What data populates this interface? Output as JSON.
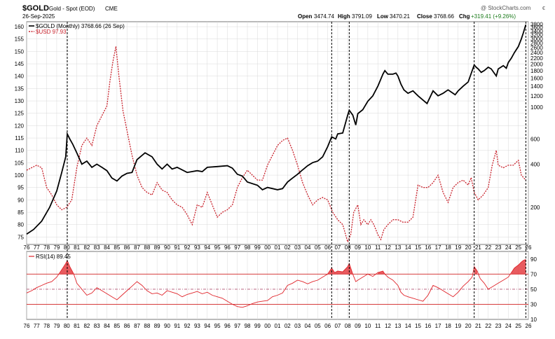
{
  "header": {
    "symbol": "$GOLD",
    "name": "Gold - Spot (EOD)",
    "exchange": "CME",
    "date": "26-Sep-2025",
    "watermark": "@ StockCharts.com",
    "ohlc": {
      "open_label": "Open",
      "open": "3474.74",
      "high_label": "High",
      "high": "3791.09",
      "low_label": "Low",
      "low": "3470.21",
      "close_label": "Close",
      "close": "3768.66",
      "chg_label": "Chg",
      "chg": "+319.41 (+9.26%)"
    },
    "corner_mark": "ϵ"
  },
  "legend": {
    "gold": "$GOLD (Monthly) 3768.66 (26 Sep)",
    "usd": "$USD 97.93",
    "rsi": "RSI(14) 89.45"
  },
  "colors": {
    "gold_line": "#000000",
    "usd_line": "#c8202a",
    "rsi_line": "#e0242a",
    "rsi_fill": "#e0242a",
    "grid": "#d9d9d9",
    "event_line": "#000000",
    "ref_line": "#d02020"
  },
  "chart_data": [
    {
      "type": "line",
      "panel": "price",
      "left_axis_ticks": [
        75,
        80,
        85,
        90,
        95,
        100,
        105,
        110,
        115,
        120,
        125,
        130,
        135,
        140,
        145,
        150,
        155,
        160
      ],
      "right_axis_ticks": [
        200,
        400,
        600,
        800,
        1000,
        1200,
        1400,
        1600,
        1800,
        2000,
        2200,
        2400,
        2600,
        2800,
        3000,
        3200,
        3400,
        3600,
        3800
      ],
      "right_axis_tick_labels": [
        "200",
        "400",
        "600",
        "",
        "1000",
        "1200",
        "1400",
        "1600",
        "1800",
        "2000",
        "2200",
        "2400",
        "2600",
        "2800",
        "3000",
        "3200",
        "3400",
        "3600",
        "3800"
      ],
      "x_tick_labels": [
        "76",
        "77",
        "78",
        "79",
        "80",
        "81",
        "82",
        "83",
        "84",
        "85",
        "86",
        "87",
        "88",
        "89",
        "90",
        "91",
        "92",
        "93",
        "94",
        "95",
        "96",
        "97",
        "98",
        "99",
        "00",
        "01",
        "02",
        "03",
        "04",
        "05",
        "06",
        "07",
        "08",
        "09",
        "10",
        "11",
        "12",
        "13",
        "14",
        "15",
        "16",
        "17",
        "18",
        "19",
        "20",
        "21",
        "22",
        "23",
        "24",
        "25",
        "26"
      ],
      "x_range": [
        1976,
        2026
      ],
      "right_scale": "log",
      "event_lines": [
        1980.05,
        2006.4,
        2008.15,
        2020.6,
        2025.75
      ],
      "series": [
        {
          "axis": "right",
          "x": [
            1976.0,
            1976.7,
            1977.5,
            1978.3,
            1979.0,
            1979.5,
            1979.9,
            1980.05,
            1980.3,
            1980.6,
            1981.0,
            1981.5,
            1982.0,
            1982.5,
            1983.0,
            1983.5,
            1984.0,
            1984.5,
            1985.0,
            1985.5,
            1986.0,
            1986.5,
            1987.0,
            1987.8,
            1988.5,
            1989.0,
            1989.5,
            1990.0,
            1990.5,
            1991.0,
            1992.0,
            1993.0,
            1993.5,
            1994.0,
            1995.0,
            1996.0,
            1996.5,
            1997.0,
            1997.5,
            1998.0,
            1999.0,
            1999.5,
            2000.0,
            2001.0,
            2001.5,
            2002.0,
            2002.5,
            2003.0,
            2003.5,
            2004.0,
            2004.5,
            2005.0,
            2005.5,
            2006.0,
            2006.4,
            2006.8,
            2007.0,
            2007.5,
            2008.0,
            2008.15,
            2008.5,
            2008.8,
            2009.0,
            2009.5,
            2010.0,
            2010.5,
            2011.0,
            2011.5,
            2011.7,
            2012.0,
            2012.5,
            2012.8,
            2013.0,
            2013.3,
            2013.6,
            2014.0,
            2014.5,
            2015.0,
            2015.9,
            2016.5,
            2017.0,
            2017.5,
            2018.0,
            2018.7,
            2019.0,
            2019.5,
            2020.0,
            2020.6,
            2020.8,
            2021.0,
            2021.3,
            2021.6,
            2022.0,
            2022.3,
            2022.8,
            2023.0,
            2023.5,
            2023.8,
            2024.0,
            2024.3,
            2024.6,
            2025.0,
            2025.3,
            2025.5,
            2025.75
          ],
          "y": [
            130,
            140,
            160,
            200,
            260,
            350,
            450,
            650,
            600,
            550,
            480,
            400,
            420,
            380,
            400,
            380,
            360,
            320,
            305,
            330,
            345,
            350,
            430,
            480,
            450,
            400,
            370,
            400,
            370,
            380,
            350,
            360,
            355,
            380,
            385,
            390,
            375,
            340,
            330,
            300,
            285,
            265,
            275,
            265,
            270,
            300,
            320,
            340,
            365,
            390,
            410,
            420,
            450,
            530,
            620,
            600,
            650,
            660,
            880,
            950,
            880,
            750,
            900,
            960,
            1100,
            1200,
            1400,
            1700,
            1800,
            1700,
            1700,
            1730,
            1650,
            1450,
            1320,
            1250,
            1300,
            1200,
            1060,
            1300,
            1200,
            1250,
            1320,
            1220,
            1300,
            1400,
            1500,
            1970,
            1900,
            1850,
            1750,
            1800,
            1900,
            1850,
            1650,
            1850,
            1950,
            1870,
            2050,
            2200,
            2400,
            2650,
            3000,
            3300,
            3768.66
          ]
        },
        {
          "axis": "left",
          "x": [
            1976.0,
            1977.0,
            1977.5,
            1978.0,
            1978.5,
            1979.0,
            1979.5,
            1980.0,
            1980.5,
            1981.0,
            1981.5,
            1982.0,
            1982.5,
            1983.0,
            1983.5,
            1984.0,
            1984.3,
            1984.6,
            1984.9,
            1985.2,
            1985.6,
            1986.0,
            1986.5,
            1987.0,
            1987.5,
            1988.0,
            1988.5,
            1989.0,
            1989.5,
            1990.0,
            1990.5,
            1991.0,
            1991.5,
            1992.0,
            1992.5,
            1993.0,
            1993.5,
            1994.0,
            1994.5,
            1995.0,
            1995.5,
            1996.0,
            1996.5,
            1997.0,
            1997.5,
            1998.0,
            1998.5,
            1999.0,
            1999.5,
            2000.0,
            2000.5,
            2001.0,
            2001.5,
            2002.0,
            2002.5,
            2003.0,
            2003.5,
            2004.0,
            2004.5,
            2005.0,
            2005.5,
            2006.0,
            2006.5,
            2007.0,
            2007.5,
            2008.0,
            2008.3,
            2008.6,
            2009.0,
            2009.3,
            2009.6,
            2010.0,
            2010.3,
            2010.6,
            2011.0,
            2011.3,
            2011.6,
            2012.0,
            2012.5,
            2013.0,
            2013.5,
            2014.0,
            2014.5,
            2015.0,
            2015.5,
            2016.0,
            2016.5,
            2017.0,
            2017.5,
            2018.0,
            2018.5,
            2019.0,
            2019.5,
            2020.0,
            2020.3,
            2020.6,
            2021.0,
            2021.5,
            2022.0,
            2022.4,
            2022.8,
            2023.0,
            2023.5,
            2024.0,
            2024.5,
            2025.0,
            2025.3,
            2025.75
          ],
          "y": [
            102,
            104,
            103,
            95,
            92,
            88,
            86,
            87,
            90,
            103,
            112,
            115,
            112,
            120,
            124,
            128,
            138,
            146,
            152,
            140,
            126,
            118,
            108,
            100,
            95,
            93,
            92,
            97,
            94,
            93,
            90,
            88,
            87,
            84,
            80,
            88,
            87,
            93,
            88,
            83,
            85,
            86,
            88,
            95,
            99,
            102,
            100,
            98,
            98,
            104,
            108,
            112,
            114,
            115,
            110,
            104,
            97,
            92,
            88,
            90,
            91,
            90,
            85,
            82,
            80,
            73,
            76,
            85,
            88,
            80,
            82,
            80,
            82,
            80,
            76,
            74,
            78,
            80,
            82,
            82,
            81,
            81,
            83,
            96,
            95,
            95,
            97,
            100,
            93,
            89,
            95,
            97,
            98,
            96,
            99,
            93,
            90,
            92,
            95,
            104,
            110,
            104,
            103,
            104,
            104,
            106,
            100,
            97.93
          ]
        }
      ]
    },
    {
      "type": "line",
      "panel": "rsi",
      "y_ticks": [
        10,
        30,
        50,
        70,
        90
      ],
      "ylim": [
        10,
        100
      ],
      "reference_lines": [
        30,
        50,
        70
      ],
      "x_tick_labels": [
        "76",
        "77",
        "78",
        "79",
        "80",
        "81",
        "82",
        "83",
        "84",
        "85",
        "86",
        "87",
        "88",
        "89",
        "90",
        "91",
        "92",
        "93",
        "94",
        "95",
        "96",
        "97",
        "98",
        "99",
        "00",
        "01",
        "02",
        "03",
        "04",
        "05",
        "06",
        "07",
        "08",
        "09",
        "10",
        "11",
        "12",
        "13",
        "14",
        "15",
        "16",
        "17",
        "18",
        "19",
        "20",
        "21",
        "22",
        "23",
        "24",
        "25",
        "26"
      ],
      "series": [
        {
          "x": [
            1976.0,
            1976.5,
            1977.0,
            1977.5,
            1978.0,
            1978.5,
            1979.0,
            1979.3,
            1979.6,
            1979.9,
            1980.05,
            1980.3,
            1980.7,
            1981.0,
            1981.5,
            1982.0,
            1982.5,
            1983.0,
            1983.5,
            1984.0,
            1984.5,
            1985.0,
            1985.5,
            1986.0,
            1986.5,
            1987.0,
            1987.5,
            1988.0,
            1988.5,
            1989.0,
            1989.5,
            1990.0,
            1990.5,
            1991.0,
            1991.5,
            1992.0,
            1992.5,
            1993.0,
            1993.5,
            1994.0,
            1994.5,
            1995.0,
            1995.5,
            1996.0,
            1996.5,
            1997.0,
            1997.5,
            1998.0,
            1998.5,
            1999.0,
            1999.5,
            2000.0,
            2000.5,
            2001.0,
            2001.5,
            2002.0,
            2002.5,
            2003.0,
            2003.5,
            2004.0,
            2004.5,
            2005.0,
            2005.5,
            2006.0,
            2006.4,
            2006.7,
            2007.0,
            2007.5,
            2008.0,
            2008.15,
            2008.5,
            2008.8,
            2009.0,
            2009.5,
            2010.0,
            2010.5,
            2011.0,
            2011.5,
            2011.7,
            2012.0,
            2012.5,
            2013.0,
            2013.3,
            2013.6,
            2014.0,
            2014.5,
            2015.0,
            2015.5,
            2016.0,
            2016.5,
            2017.0,
            2017.5,
            2018.0,
            2018.5,
            2019.0,
            2019.5,
            2020.0,
            2020.4,
            2020.6,
            2020.9,
            2021.2,
            2021.6,
            2022.0,
            2022.5,
            2023.0,
            2023.5,
            2024.0,
            2024.3,
            2024.6,
            2025.0,
            2025.3,
            2025.5,
            2025.75
          ],
          "y": [
            45,
            48,
            52,
            55,
            58,
            60,
            66,
            72,
            78,
            84,
            88,
            80,
            70,
            58,
            50,
            42,
            45,
            52,
            48,
            44,
            40,
            36,
            42,
            48,
            54,
            60,
            55,
            48,
            44,
            45,
            42,
            48,
            46,
            44,
            40,
            43,
            45,
            47,
            44,
            46,
            42,
            40,
            38,
            34,
            30,
            27,
            26,
            28,
            31,
            33,
            34,
            35,
            40,
            42,
            45,
            55,
            58,
            62,
            60,
            57,
            60,
            62,
            66,
            70,
            78,
            72,
            74,
            73,
            80,
            84,
            70,
            60,
            62,
            66,
            70,
            67,
            72,
            74,
            70,
            66,
            62,
            55,
            46,
            42,
            40,
            38,
            36,
            34,
            42,
            55,
            52,
            48,
            44,
            40,
            46,
            54,
            60,
            66,
            80,
            74,
            64,
            58,
            50,
            54,
            58,
            62,
            66,
            72,
            78,
            82,
            86,
            88,
            89.45
          ]
        }
      ]
    }
  ]
}
